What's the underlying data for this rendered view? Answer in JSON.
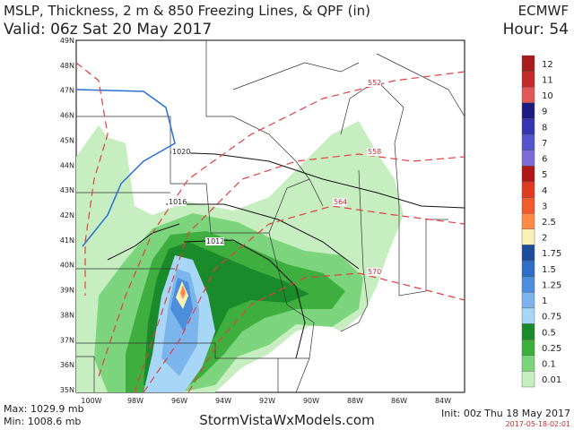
{
  "header": {
    "title": "MSLP, Thickness, 2 m & 850 Freezing Lines, & QPF (in)",
    "valid": "Valid: 06z Sat 20 May 2017",
    "model": "ECMWF",
    "hour": "Hour: 54"
  },
  "map": {
    "lat_labels": [
      "49N",
      "48N",
      "47N",
      "46N",
      "45N",
      "44N",
      "43N",
      "42N",
      "41N",
      "40N",
      "39N",
      "38N",
      "37N",
      "36N",
      "35N"
    ],
    "lon_labels": [
      "100W",
      "98W",
      "96W",
      "94W",
      "92W",
      "90W",
      "88W",
      "86W",
      "84W"
    ],
    "isobar_labels": [
      "1020",
      "1016",
      "1012"
    ],
    "thickness_labels": [
      "552",
      "558",
      "564",
      "570"
    ]
  },
  "legend": [
    {
      "label": "12",
      "color": "#a81c1c"
    },
    {
      "label": "11",
      "color": "#c42a2a"
    },
    {
      "label": "10",
      "color": "#e05858"
    },
    {
      "label": "9",
      "color": "#1c1c80"
    },
    {
      "label": "8",
      "color": "#3434b0"
    },
    {
      "label": "7",
      "color": "#5454cc"
    },
    {
      "label": "6",
      "color": "#7c6cd8"
    },
    {
      "label": "5",
      "color": "#b01818"
    },
    {
      "label": "4",
      "color": "#e03a22"
    },
    {
      "label": "3",
      "color": "#f25a30"
    },
    {
      "label": "2.5",
      "color": "#ff8a48"
    },
    {
      "label": "2",
      "color": "#f8f0b4"
    },
    {
      "label": "1.75",
      "color": "#1e4c9c"
    },
    {
      "label": "1.5",
      "color": "#2e6ec4"
    },
    {
      "label": "1.25",
      "color": "#4c8edc"
    },
    {
      "label": "1",
      "color": "#7cb4ec"
    },
    {
      "label": "0.75",
      "color": "#a8d6f6"
    },
    {
      "label": "0.5",
      "color": "#1a8a2a"
    },
    {
      "label": "0.25",
      "color": "#3eae3e"
    },
    {
      "label": "0.1",
      "color": "#7cd47c"
    },
    {
      "label": "0.01",
      "color": "#c6eec0"
    }
  ],
  "footer": {
    "max": "Max: 1029.9 mb",
    "min": "Min: 1008.6 mb",
    "site": "StormVistaWxModels.com",
    "init": "Init: 00z Thu 18 May 2017",
    "stamp": "2017-05-18-02:01"
  }
}
